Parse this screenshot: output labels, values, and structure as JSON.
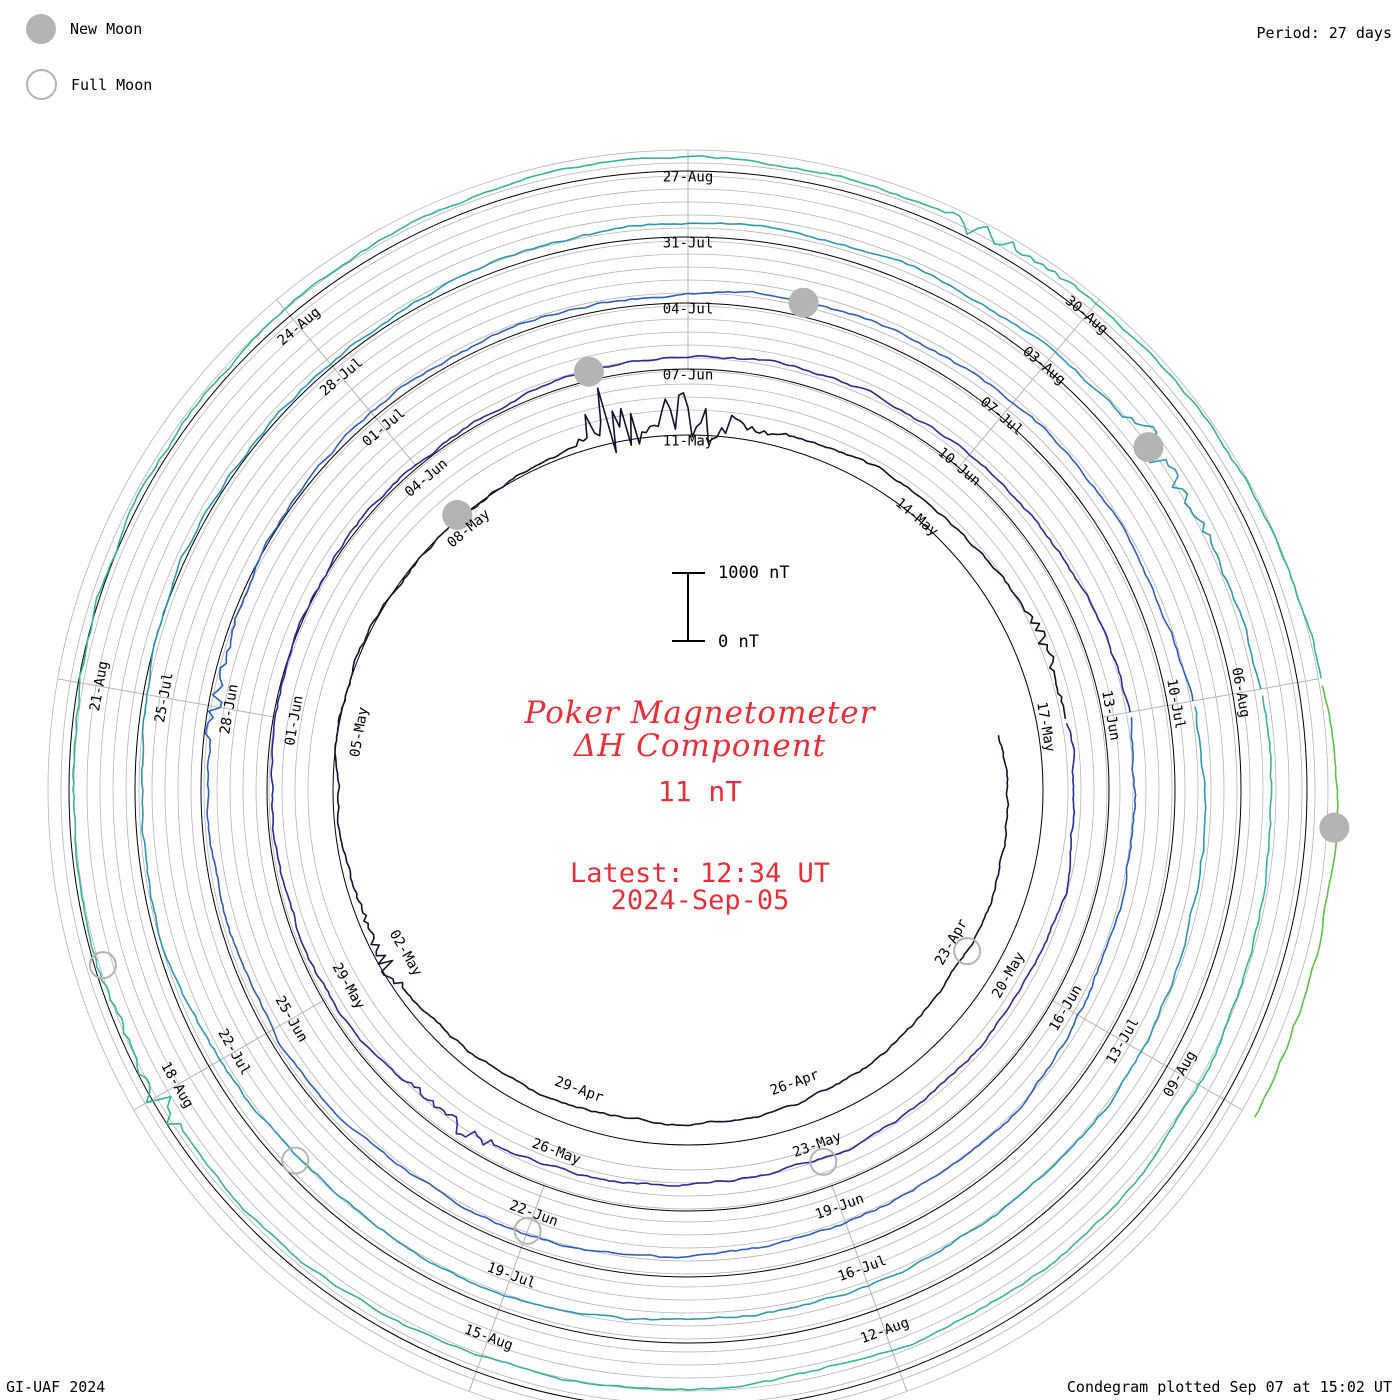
{
  "legend": {
    "new_moon": "New Moon",
    "full_moon": "Full Moon"
  },
  "period_label": "Period: 27 days",
  "footer_left": "GI-UAF 2024",
  "footer_right": "Condegram plotted Sep 07 at 15:02 UT",
  "title": {
    "line1": "Poker Magnetometer",
    "line2": "ΔH Component",
    "value": "11 nT",
    "latest_time": "Latest: 12:34 UT",
    "latest_date": "2024-Sep-05"
  },
  "scale_bar": {
    "top_label": "1000 nT",
    "bottom_label": "0 nT"
  },
  "colors": {
    "title": "#e8303a",
    "grid": "#b4b4b4",
    "moon": "#b4b4b4",
    "turns": [
      "#101030",
      "#2a2a9a",
      "#2f5fc0",
      "#2e97b4",
      "#3ab39a",
      "#5fbf4a",
      "#a6b722",
      "#c8951c",
      "#c05a16",
      "#b0201a"
    ]
  },
  "chart_data": {
    "type": "line",
    "chart_kind": "condegram (spiral time series, one turn per 27-day period)",
    "start_date": "2024-Apr-20",
    "end_date": "2024-Sep-05",
    "period_days": 27,
    "scale_nT": [
      0,
      1000
    ],
    "date_labels": [
      "23-Apr",
      "26-Apr",
      "29-Apr",
      "02-May",
      "05-May",
      "08-May",
      "11-May",
      "14-May",
      "17-May",
      "20-May",
      "23-May",
      "26-May",
      "29-May",
      "01-Jun",
      "04-Jun",
      "07-Jun",
      "10-Jun",
      "13-Jun",
      "16-Jun",
      "19-Jun",
      "22-Jun",
      "25-Jun",
      "28-Jun",
      "01-Jul",
      "04-Jul",
      "07-Jul",
      "10-Jul",
      "13-Jul",
      "16-Jul",
      "19-Jul",
      "22-Jul",
      "25-Jul",
      "28-Jul",
      "31-Jul",
      "03-Aug",
      "06-Aug",
      "09-Aug",
      "12-Aug",
      "15-Aug",
      "18-Aug",
      "21-Aug",
      "24-Aug",
      "27-Aug",
      "30-Aug"
    ],
    "new_moons": [
      "2024-May-08",
      "2024-Jun-06",
      "2024-Jul-05",
      "2024-Aug-04",
      "2024-Sep-03"
    ],
    "full_moons": [
      "2024-Apr-23",
      "2024-May-23",
      "2024-Jun-22",
      "2024-Jul-21",
      "2024-Aug-19"
    ],
    "activity_events": [
      {
        "date": "2024-May-02",
        "amplitude_nT": 300
      },
      {
        "date": "2024-May-10",
        "amplitude_nT": 1400
      },
      {
        "date": "2024-May-11",
        "amplitude_nT": 1100
      },
      {
        "date": "2024-May-16",
        "amplitude_nT": 250
      },
      {
        "date": "2024-May-27",
        "amplitude_nT": 300
      },
      {
        "date": "2024-Jun-28",
        "amplitude_nT": 250
      },
      {
        "date": "2024-Aug-04",
        "amplitude_nT": 500
      },
      {
        "date": "2024-Aug-18",
        "amplitude_nT": 400
      },
      {
        "date": "2024-Aug-29",
        "amplitude_nT": 300
      }
    ]
  }
}
